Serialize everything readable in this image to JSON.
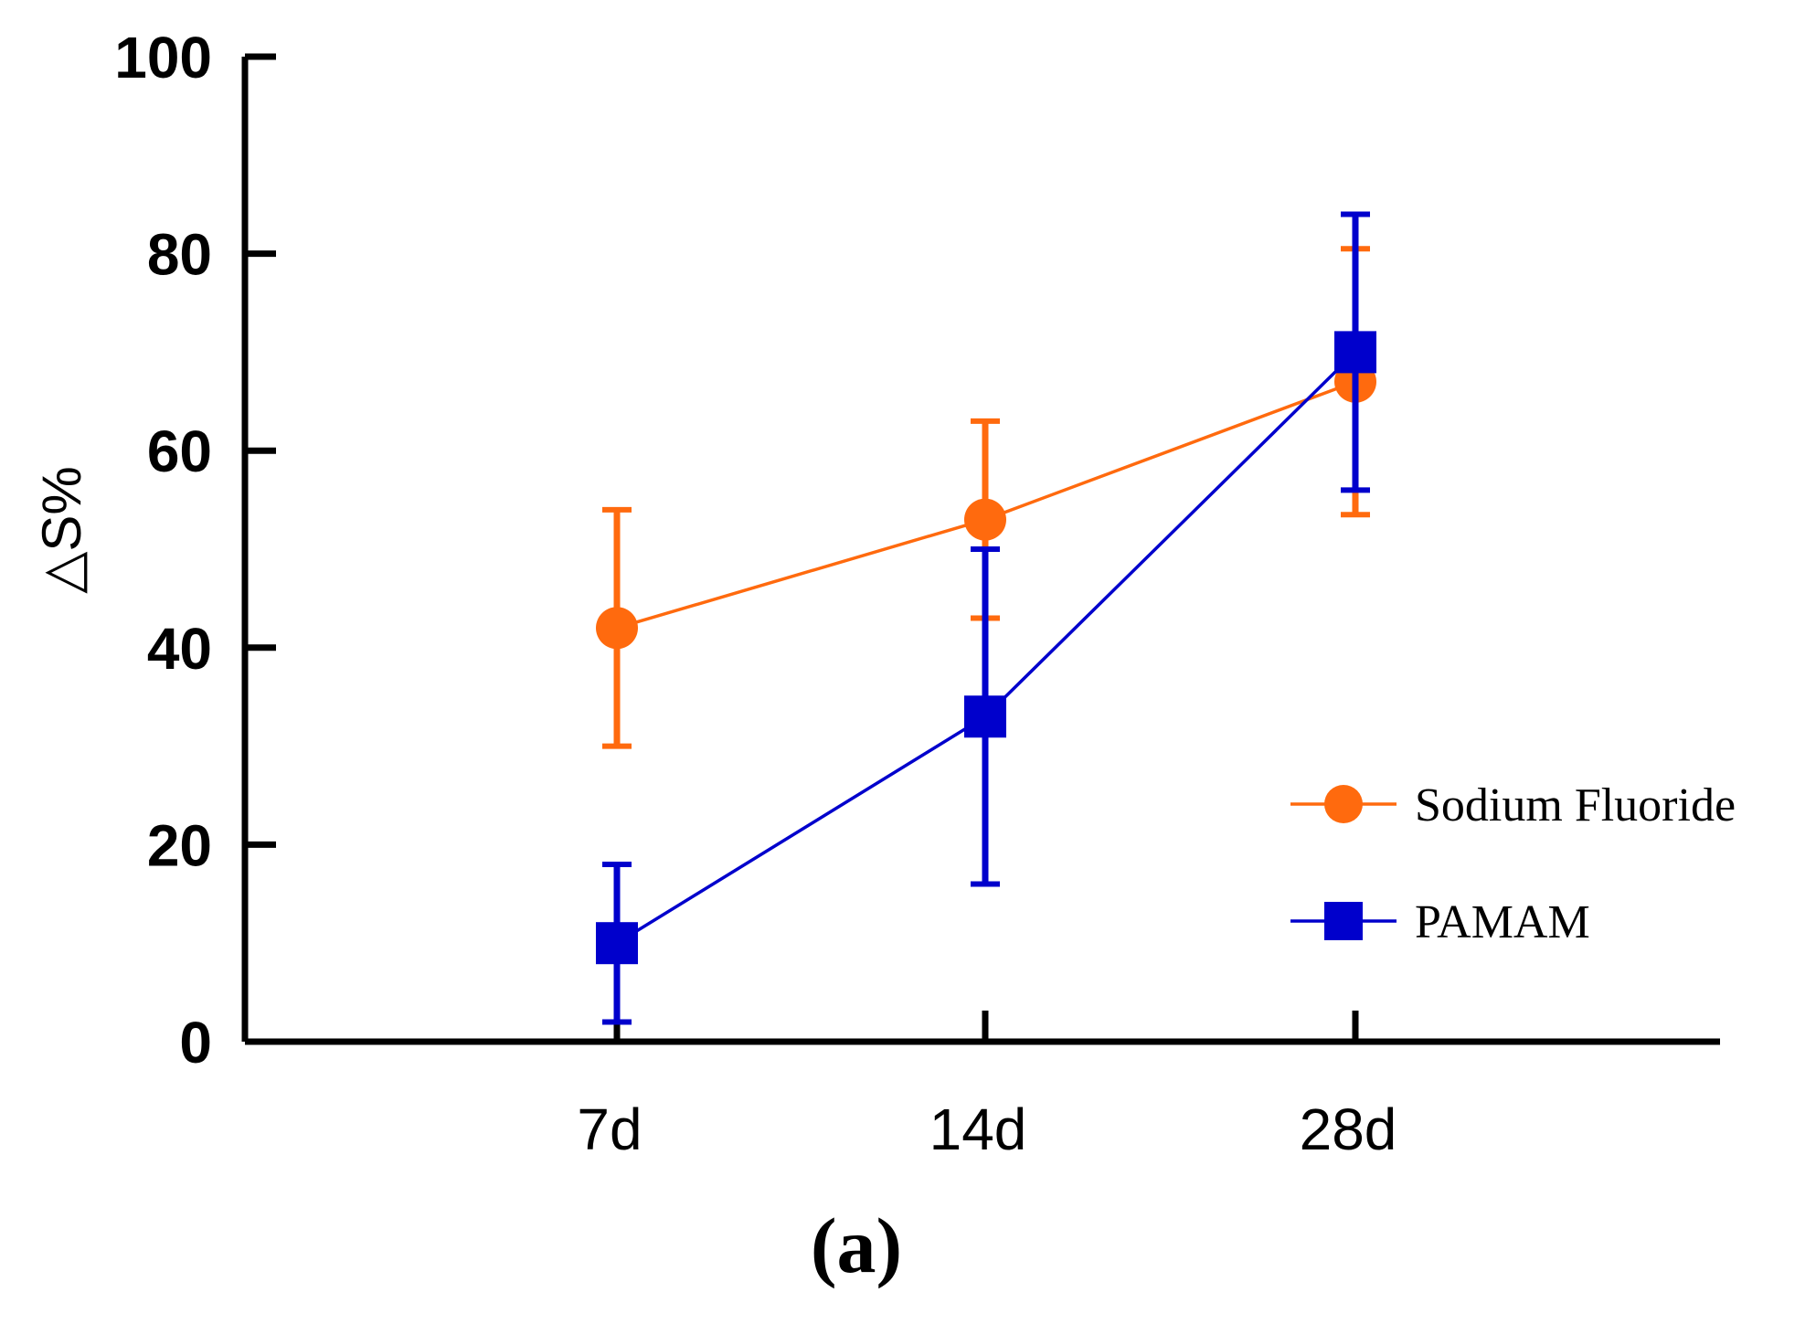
{
  "chart_data": {
    "type": "line",
    "title": "",
    "caption": "(a)",
    "xlabel": "",
    "ylabel": "△S%",
    "ylim": [
      0,
      100
    ],
    "yticks": [
      0,
      20,
      40,
      60,
      80,
      100
    ],
    "categories": [
      "7d",
      "14d",
      "28d"
    ],
    "legend_position": "right",
    "grid": false,
    "series": [
      {
        "name": "Sodium Fluoride",
        "marker": "circle",
        "color": "#ff6a0e",
        "values": [
          42,
          53,
          67
        ],
        "error": [
          12,
          10,
          13.5
        ]
      },
      {
        "name": "PAMAM",
        "marker": "square",
        "color": "#0000cc",
        "values": [
          10,
          33,
          70
        ],
        "error": [
          8,
          17,
          14
        ]
      }
    ]
  }
}
